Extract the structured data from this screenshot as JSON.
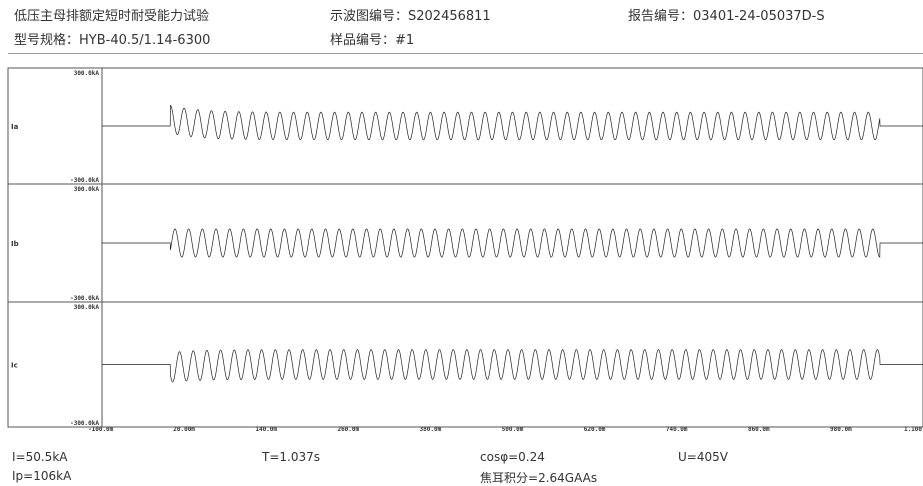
{
  "header": {
    "title": "低压主母排额定短时耐受能力试验",
    "model_label": "型号规格：",
    "model_value": "HYB-40.5/1.14-6300",
    "osc_label": "示波图编号：",
    "osc_value": "S202456811",
    "sample_label": "样品编号：",
    "sample_value": "#1",
    "report_label": "报告编号：",
    "report_value": "03401-24-05037D-S"
  },
  "chart_data": {
    "type": "line",
    "x_unit": "ms",
    "xlim": [
      -100,
      1100
    ],
    "x_ticks": [
      -100,
      20,
      140,
      260,
      380,
      500,
      620,
      740,
      860,
      980,
      1100
    ],
    "x_tick_labels": [
      "-100.0m",
      "20.00m",
      "140.0m",
      "260.0m",
      "380.0m",
      "500.0m",
      "620.0m",
      "740.0m",
      "860.0m",
      "980.0m",
      "1.100"
    ],
    "fault_start_ms": 0,
    "fault_end_ms": 1037,
    "frequency_hz": 50,
    "panels": [
      {
        "name": "Ia",
        "y_unit": "kA",
        "ylim": [
          -300,
          300
        ],
        "y_tick_labels": [
          "300.0kA",
          "-300.0kA"
        ],
        "steady_amp_kA": 71.4,
        "peak_kA": 106,
        "initial_phase_deg": 90,
        "decay_ms": 40
      },
      {
        "name": "Ib",
        "y_unit": "kA",
        "ylim": [
          -300,
          300
        ],
        "y_tick_labels": [
          "300.0kA",
          "-300.0kA"
        ],
        "steady_amp_kA": 71.4,
        "peak_kA": 71.4,
        "initial_phase_deg": -30,
        "decay_ms": 40
      },
      {
        "name": "Ic",
        "y_unit": "kA",
        "ylim": [
          -300,
          300
        ],
        "y_tick_labels": [
          "300.0kA",
          "-300.0kA"
        ],
        "steady_amp_kA": 71.4,
        "peak_kA": 85,
        "initial_phase_deg": 210,
        "decay_ms": 40
      }
    ]
  },
  "results": {
    "I": "I=50.5kA",
    "Ip": "Ip=106kA",
    "T": "T=1.037s",
    "cos": "cosφ=0.24",
    "joule_label": "焦耳积分",
    "joule_value": "=2.64GAAs",
    "U": "U=405V"
  }
}
